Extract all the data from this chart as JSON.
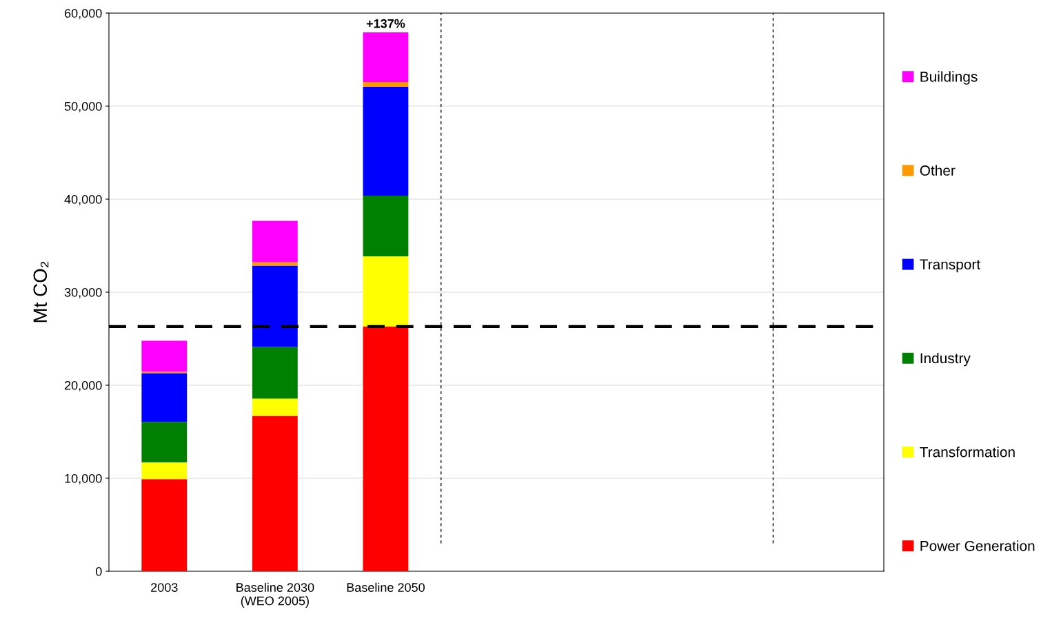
{
  "chart_data": {
    "type": "bar",
    "stacked": true,
    "ylabel": "Mt CO₂",
    "categories": [
      "2003",
      "Baseline 2030\n(WEO 2005)",
      "Baseline 2050",
      null,
      null,
      null,
      null
    ],
    "series": [
      {
        "name": "Power Generation",
        "color": "#ff0000",
        "values": [
          9900,
          16700,
          26300,
          null,
          null,
          null,
          null
        ]
      },
      {
        "name": "Transformation",
        "color": "#ffff00",
        "values": [
          1800,
          1850,
          7550,
          null,
          null,
          null,
          null
        ]
      },
      {
        "name": "Industry",
        "color": "#008000",
        "values": [
          4350,
          5560,
          6520,
          null,
          null,
          null,
          null
        ]
      },
      {
        "name": "Transport",
        "color": "#0000ff",
        "values": [
          5250,
          8740,
          11700,
          null,
          null,
          null,
          null
        ]
      },
      {
        "name": "Other",
        "color": "#ff9900",
        "values": [
          150,
          370,
          520,
          null,
          null,
          null,
          null
        ]
      },
      {
        "name": "Buildings",
        "color": "#ff00ff",
        "values": [
          3330,
          4440,
          5340,
          null,
          null,
          null,
          null
        ]
      }
    ],
    "ylim": [
      0,
      60000
    ],
    "yticks": [
      {
        "value": 0,
        "label": "0"
      },
      {
        "value": 10000,
        "label": "10,000"
      },
      {
        "value": 20000,
        "label": "20,000"
      },
      {
        "value": 30000,
        "label": "30,000"
      },
      {
        "value": 40000,
        "label": "40,000"
      },
      {
        "value": 50000,
        "label": "50,000"
      },
      {
        "value": 60000,
        "label": "60,000"
      }
    ],
    "grid": "y",
    "legend": "right",
    "ref_lines": [
      {
        "axis": "y",
        "value": 26300,
        "color": "#000000",
        "line_style": "dashed"
      }
    ],
    "annotations": [
      {
        "text": "+137%",
        "x": "Baseline 2050",
        "y": 57930
      }
    ]
  }
}
